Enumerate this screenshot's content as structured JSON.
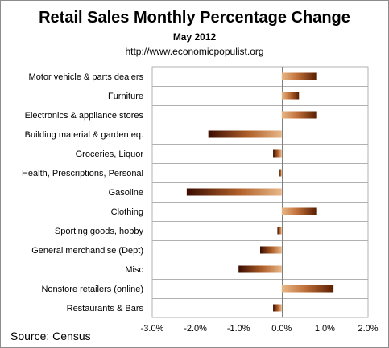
{
  "chart_data": {
    "type": "bar",
    "orientation": "horizontal",
    "title": "Retail Sales Monthly  Percentage Change",
    "subtitle": "May 2012",
    "url": "http://www.economicpopulist.org",
    "source": "Source:  Census",
    "categories": [
      "Motor vehicle & parts dealers",
      "Furniture",
      "Electronics & appliance stores",
      "Building material & garden eq.",
      "Groceries, Liquor",
      "Health, Prescriptions, Personal",
      "Gasoline",
      "Clothing",
      "Sporting goods, hobby",
      "General merchandise (Dept)",
      "Misc",
      "Nonstore retailers (online)",
      "Restaurants & Bars"
    ],
    "values": [
      0.8,
      0.4,
      0.8,
      -1.7,
      -0.2,
      -0.05,
      -2.2,
      0.8,
      -0.1,
      -0.5,
      -1.0,
      1.2,
      -0.2
    ],
    "xlim": [
      -3.0,
      2.0
    ],
    "ticks": [
      -3.0,
      -2.0,
      -1.0,
      0.0,
      1.0,
      2.0
    ],
    "tick_labels": [
      "-3.0%",
      "-2.0%",
      "-1.0%",
      "0.0%",
      "1.0%",
      "2.0%"
    ],
    "xlabel": "",
    "ylabel": "",
    "grid": "horizontal-rows",
    "legend": "none",
    "colors": {
      "positive_light": "#e8b888",
      "positive_dark": "#5a1e00",
      "negative_light": "#e8b888",
      "negative_dark": "#3a0c00",
      "grid": "#b0b0b0"
    }
  }
}
